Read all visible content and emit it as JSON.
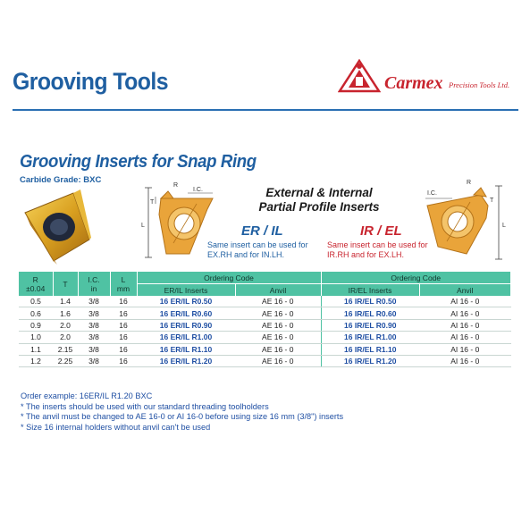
{
  "header": {
    "title": "Grooving Tools",
    "brand": "Carmex",
    "brand_sub": "Precision Tools Ltd."
  },
  "section": {
    "title": "Grooving Inserts for Snap Ring",
    "grade": "Carbide Grade: BXC"
  },
  "profile": {
    "title_line1": "External & Internal",
    "title_line2": "Partial Profile Inserts",
    "er_title": "ER / IL",
    "er_note": "Same insert can be used for EX.RH and for IN.LH.",
    "ir_title": "IR / EL",
    "ir_note": "Same insert can be used for IR.RH and for EX.LH."
  },
  "diagram_labels": {
    "r": "R",
    "t": "T",
    "ic": "I.C.",
    "l": "L"
  },
  "table": {
    "h_r": "R",
    "h_r2": "±0.04",
    "h_t": "T",
    "h_ic": "I.C.",
    "h_ic2": "in",
    "h_l": "L",
    "h_l2": "mm",
    "ordering_left": "Ordering Code",
    "ordering_right": "Ordering Code",
    "er_inserts": "ER/IL Inserts",
    "anvil_left": "Anvil",
    "ir_inserts": "IR/EL Inserts",
    "anvil_right": "Anvil",
    "rows": [
      [
        "0.5",
        "1.4",
        "3/8",
        "16",
        "16 ER/IL R0.50",
        "AE 16 - 0",
        "16 IR/EL R0.50",
        "AI 16 - 0"
      ],
      [
        "0.6",
        "1.6",
        "3/8",
        "16",
        "16 ER/IL R0.60",
        "AE 16 - 0",
        "16 IR/EL R0.60",
        "AI 16 - 0"
      ],
      [
        "0.9",
        "2.0",
        "3/8",
        "16",
        "16 ER/IL R0.90",
        "AE 16 - 0",
        "16 IR/EL R0.90",
        "AI 16 - 0"
      ],
      [
        "1.0",
        "2.0",
        "3/8",
        "16",
        "16 ER/IL R1.00",
        "AE 16 - 0",
        "16 IR/EL R1.00",
        "AI 16 - 0"
      ],
      [
        "1.1",
        "2.15",
        "3/8",
        "16",
        "16 ER/IL R1.10",
        "AE 16 - 0",
        "16 IR/EL R1.10",
        "AI 16 - 0"
      ],
      [
        "1.2",
        "2.25",
        "3/8",
        "16",
        "16 ER/IL R1.20",
        "AE 16 - 0",
        "16 IR/EL R1.20",
        "AI 16 - 0"
      ]
    ]
  },
  "notes": [
    "Order example: 16ER/IL R1.20 BXC",
    "* The inserts should be used with our standard threading toolholders",
    "* The anvil must be changed to AE 16-0 or  AI 16-0 before using size 16 mm (3/8\") inserts",
    "* Size 16 internal holders without anvil can't be used"
  ]
}
